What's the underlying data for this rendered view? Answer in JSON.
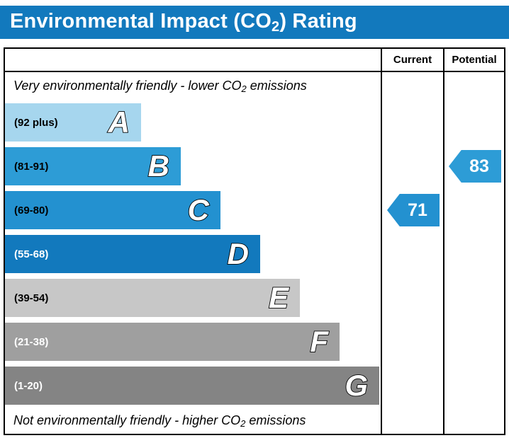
{
  "title": {
    "pre": "Environmental Impact (CO",
    "sub": "2",
    "post": ") Rating"
  },
  "columns": {
    "current": "Current",
    "potential": "Potential"
  },
  "notes": {
    "top": {
      "pre": "Very environmentally friendly - lower CO",
      "sub": "2",
      "post": " emissions"
    },
    "bottom": {
      "pre": "Not environmentally friendly - higher CO",
      "sub": "2",
      "post": " emissions"
    }
  },
  "bands": [
    {
      "letter": "A",
      "range": "(92 plus)",
      "color": "#a6d6ee"
    },
    {
      "letter": "B",
      "range": "(81-91)",
      "color": "#2d9cd6"
    },
    {
      "letter": "C",
      "range": "(69-80)",
      "color": "#2391d0"
    },
    {
      "letter": "D",
      "range": "(55-68)",
      "color": "#1279bd"
    },
    {
      "letter": "E",
      "range": "(39-54)",
      "color": "#c7c7c7"
    },
    {
      "letter": "F",
      "range": "(21-38)",
      "color": "#9f9f9f"
    },
    {
      "letter": "G",
      "range": "(1-20)",
      "color": "#848484"
    }
  ],
  "ratings": {
    "current": {
      "value": "71",
      "band": "C",
      "color": "#2391d0"
    },
    "potential": {
      "value": "83",
      "band": "B",
      "color": "#2d9cd6"
    }
  },
  "theme": {
    "title_bar": "#1279bd",
    "border": "#000000",
    "background": "#ffffff"
  },
  "chart_data": {
    "type": "bar",
    "title": "Environmental Impact (CO2) Rating",
    "categories": [
      "A",
      "B",
      "C",
      "D",
      "E",
      "F",
      "G"
    ],
    "band_ranges": [
      "92 plus",
      "81-91",
      "69-80",
      "55-68",
      "39-54",
      "21-38",
      "1-20"
    ],
    "band_colors": [
      "#a6d6ee",
      "#2d9cd6",
      "#2391d0",
      "#1279bd",
      "#c7c7c7",
      "#9f9f9f",
      "#848484"
    ],
    "bar_lengths_relative": [
      0.36,
      0.47,
      0.57,
      0.68,
      0.78,
      0.89,
      1.0
    ],
    "current": 71,
    "current_band": "C",
    "potential": 83,
    "potential_band": "B",
    "top_annotation": "Very environmentally friendly - lower CO2 emissions",
    "bottom_annotation": "Not environmentally friendly - higher CO2 emissions",
    "legend_position": "none",
    "grid": false
  }
}
